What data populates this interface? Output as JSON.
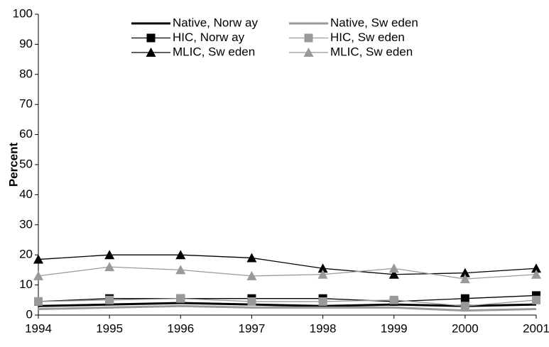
{
  "chart_data": {
    "type": "line",
    "ylabel": "Percent",
    "x": [
      1994,
      1995,
      1996,
      1997,
      1998,
      1999,
      2000,
      2001
    ],
    "xlim": [
      1994,
      2001
    ],
    "xticks": [
      1994,
      1995,
      1996,
      1997,
      1998,
      1999,
      2000,
      2001
    ],
    "ylim": [
      0,
      100
    ],
    "yticks": [
      0,
      10,
      20,
      30,
      40,
      50,
      60,
      70,
      80,
      90,
      100
    ],
    "series": [
      {
        "name": "Native, Norw ay",
        "color": "#000000",
        "marker": "none",
        "line_width": 3,
        "values": [
          3,
          3.5,
          4,
          3.5,
          3,
          3.5,
          3,
          3.5
        ]
      },
      {
        "name": "Native, Sw eden",
        "color": "#999999",
        "marker": "none",
        "line_width": 3,
        "values": [
          2,
          2.5,
          3,
          2.5,
          2.5,
          2.5,
          1.5,
          2
        ]
      },
      {
        "name": "HIC, Norw ay",
        "color": "#000000",
        "marker": "square",
        "line_width": 1.3,
        "values": [
          4.5,
          5.5,
          5.5,
          5.5,
          5.5,
          4.5,
          5.5,
          6.5
        ]
      },
      {
        "name": "HIC, Sw eden",
        "color": "#999999",
        "marker": "square",
        "line_width": 1.3,
        "values": [
          4.5,
          5,
          5.5,
          4.5,
          4.5,
          5,
          3,
          5
        ]
      },
      {
        "name": "MLIC, Sw eden",
        "color": "#000000",
        "marker": "triangle",
        "line_width": 1.3,
        "values": [
          18.5,
          20,
          20,
          19,
          15.5,
          13.5,
          14,
          15.5
        ]
      },
      {
        "name": "MLIC, Sw eden",
        "color": "#999999",
        "marker": "triangle",
        "line_width": 1.3,
        "values": [
          13,
          16,
          15,
          13,
          13.5,
          15.5,
          12,
          13.5
        ]
      }
    ]
  }
}
